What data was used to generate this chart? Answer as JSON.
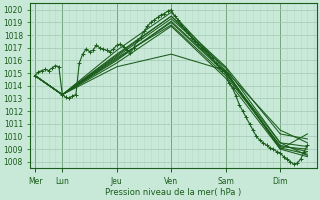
{
  "xlabel": "Pression niveau de la mer( hPa )",
  "bg_color": "#c8e8d8",
  "grid_color_major": "#a0c8b0",
  "grid_color_minor": "#b8d8c8",
  "line_color": "#1a5c1a",
  "ylim": [
    1007.5,
    1020.5
  ],
  "yticks": [
    1008,
    1009,
    1010,
    1011,
    1012,
    1013,
    1014,
    1015,
    1016,
    1017,
    1018,
    1019,
    1020
  ],
  "day_labels": [
    "Mer",
    "Lun",
    "Jeu",
    "Ven",
    "Sam",
    "Dim"
  ],
  "day_positions": [
    0,
    24,
    72,
    120,
    168,
    216
  ],
  "xlim": [
    -4,
    248
  ],
  "series": [
    [
      0,
      1014.8,
      3,
      1015.1,
      6,
      1015.2,
      9,
      1015.3,
      12,
      1015.2,
      15,
      1015.4,
      18,
      1015.6,
      21,
      1015.5,
      24,
      1013.3,
      27,
      1013.1,
      30,
      1013.0,
      33,
      1013.2,
      36,
      1013.3,
      39,
      1015.8,
      42,
      1016.5,
      45,
      1016.9,
      48,
      1016.7,
      51,
      1016.8,
      54,
      1017.2,
      57,
      1017.0,
      60,
      1016.9,
      63,
      1016.8,
      66,
      1016.7,
      69,
      1016.9,
      72,
      1017.2,
      75,
      1017.3,
      78,
      1017.1,
      81,
      1016.8,
      84,
      1016.6,
      87,
      1017.0,
      90,
      1017.6,
      93,
      1017.8,
      96,
      1018.3,
      99,
      1018.7,
      102,
      1019.0,
      105,
      1019.2,
      108,
      1019.4,
      111,
      1019.6,
      114,
      1019.7,
      117,
      1019.9,
      120,
      1020.0,
      123,
      1019.5,
      126,
      1019.2,
      129,
      1018.8,
      132,
      1018.5,
      135,
      1018.2,
      138,
      1017.8,
      141,
      1017.5,
      144,
      1017.3,
      147,
      1017.0,
      150,
      1016.8,
      153,
      1016.5,
      156,
      1016.2,
      159,
      1015.8,
      162,
      1015.5,
      165,
      1015.2,
      168,
      1015.0,
      171,
      1014.2,
      174,
      1013.8,
      177,
      1013.2,
      180,
      1012.5,
      183,
      1012.0,
      186,
      1011.5,
      189,
      1011.0,
      192,
      1010.5,
      195,
      1010.0,
      198,
      1009.7,
      201,
      1009.5,
      204,
      1009.3,
      207,
      1009.1,
      210,
      1009.0,
      213,
      1008.8,
      216,
      1008.7,
      219,
      1008.4,
      222,
      1008.2,
      225,
      1008.0,
      228,
      1007.8,
      231,
      1007.9,
      234,
      1008.2,
      237,
      1008.8,
      240,
      1009.3
    ],
    [
      0,
      1014.8,
      24,
      1013.3,
      72,
      1016.8,
      120,
      1019.8,
      168,
      1015.2,
      216,
      1009.0,
      240,
      1010.2
    ],
    [
      0,
      1014.8,
      24,
      1013.3,
      72,
      1016.3,
      120,
      1019.3,
      168,
      1015.4,
      216,
      1009.5,
      240,
      1008.5
    ],
    [
      0,
      1014.8,
      24,
      1013.3,
      72,
      1016.5,
      120,
      1019.5,
      168,
      1015.5,
      216,
      1010.2,
      240,
      1009.8
    ],
    [
      0,
      1014.8,
      24,
      1013.3,
      72,
      1016.0,
      120,
      1019.1,
      168,
      1015.1,
      216,
      1009.2,
      240,
      1009.0
    ],
    [
      0,
      1014.8,
      24,
      1013.3,
      72,
      1016.2,
      120,
      1018.8,
      168,
      1014.8,
      216,
      1009.3,
      240,
      1008.8
    ],
    [
      0,
      1014.8,
      24,
      1013.3,
      72,
      1016.1,
      120,
      1019.0,
      168,
      1015.0,
      216,
      1009.1,
      240,
      1008.6
    ],
    [
      0,
      1014.8,
      24,
      1013.3,
      72,
      1015.8,
      120,
      1018.7,
      168,
      1014.6,
      216,
      1009.0,
      240,
      1008.4
    ],
    [
      0,
      1014.8,
      24,
      1013.3,
      72,
      1015.5,
      120,
      1016.5,
      168,
      1015.2,
      216,
      1010.5,
      240,
      1009.5
    ],
    [
      0,
      1014.8,
      24,
      1013.3,
      120,
      1019.5,
      168,
      1015.0,
      216,
      1009.5,
      240,
      1009.2
    ]
  ]
}
